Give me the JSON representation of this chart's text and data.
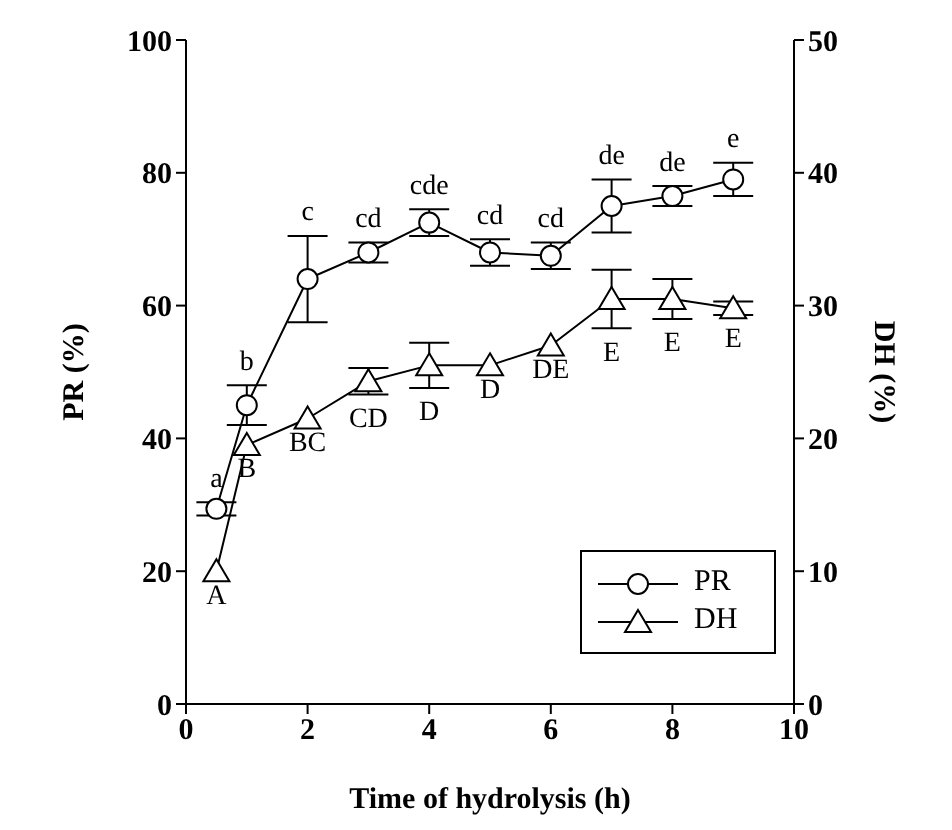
{
  "chart_data": {
    "type": "line",
    "xlabel": "Time of hydrolysis (h)",
    "ylabel": "PR (%)",
    "y2label": "DH (%)",
    "x": [
      0.5,
      1,
      2,
      3,
      4,
      5,
      6,
      7,
      8,
      9
    ],
    "xlim": [
      0,
      10
    ],
    "xticks": [
      0,
      2,
      4,
      6,
      8,
      10
    ],
    "ylim": [
      0,
      100
    ],
    "yticks": [
      0,
      20,
      40,
      60,
      80,
      100
    ],
    "y2lim": [
      0,
      50
    ],
    "y2ticks": [
      0,
      10,
      20,
      30,
      40,
      50
    ],
    "series": [
      {
        "name": "PR",
        "color": "#000000",
        "marker": "circle",
        "values": [
          29.4,
          45,
          64,
          68,
          72.5,
          68,
          67.5,
          75,
          76.5,
          79
        ],
        "errors": [
          1,
          3,
          6.5,
          1.5,
          2,
          2,
          2,
          4,
          1.5,
          2.5
        ]
      },
      {
        "name": "DH",
        "color": "#000000",
        "marker": "triangle",
        "axis": "y2",
        "values": [
          10,
          19.5,
          21.5,
          24.3,
          25.5,
          25.5,
          27,
          30.5,
          30.5,
          29.8
        ],
        "errors": [
          null,
          null,
          null,
          1,
          1.7,
          null,
          null,
          2.2,
          1.5,
          0.5
        ]
      }
    ],
    "annotations": [
      {
        "text": "a",
        "x": 0.5,
        "y": 29.4
      },
      {
        "text": "b",
        "x": 1,
        "y": 45
      },
      {
        "text": "c",
        "x": 2,
        "y": 64
      },
      {
        "text": "cd",
        "x": 3,
        "y": 68
      },
      {
        "text": "cde",
        "x": 4,
        "y": 72.5
      },
      {
        "text": "cd",
        "x": 5,
        "y": 68
      },
      {
        "text": "cd",
        "x": 6,
        "y": 67.5
      },
      {
        "text": "de",
        "x": 7,
        "y": 75
      },
      {
        "text": "de",
        "x": 8,
        "y": 76.5
      },
      {
        "text": "e",
        "x": 9,
        "y": 79
      },
      {
        "text": "A",
        "x": 0.5,
        "y": 20
      },
      {
        "text": "B",
        "x": 1,
        "y": 39
      },
      {
        "text": "BC",
        "x": 2,
        "y": 43
      },
      {
        "text": "CD",
        "x": 3,
        "y": 48.6
      },
      {
        "text": "D",
        "x": 4,
        "y": 51
      },
      {
        "text": "D",
        "x": 5,
        "y": 51
      },
      {
        "text": "DE",
        "x": 6,
        "y": 54
      },
      {
        "text": "E",
        "x": 7,
        "y": 61
      },
      {
        "text": "E",
        "x": 8,
        "y": 61
      },
      {
        "text": "E",
        "x": 9,
        "y": 59.6
      }
    ],
    "legend": "bottom right"
  }
}
